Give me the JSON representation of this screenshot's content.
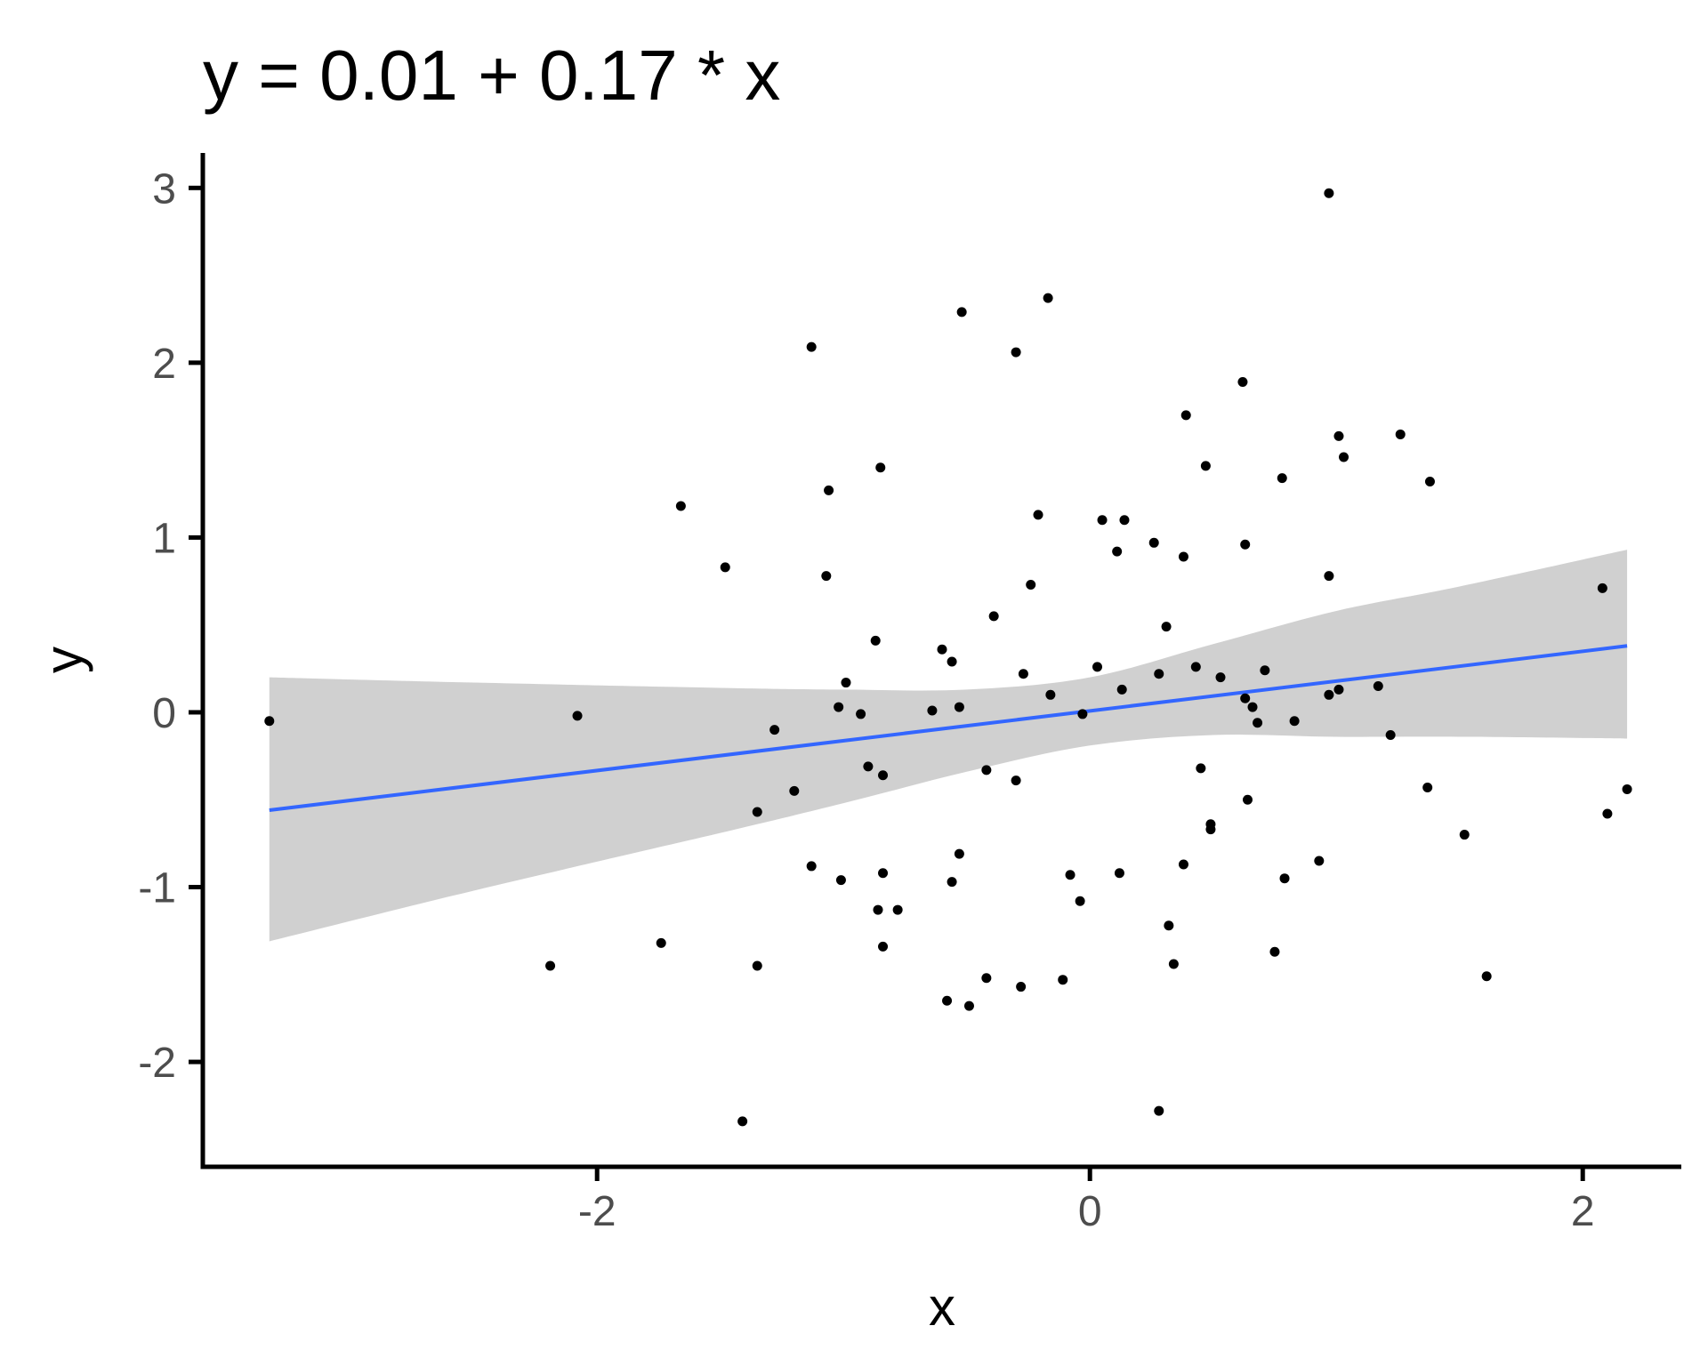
{
  "chart_data": {
    "type": "scatter",
    "title": "y = 0.01 + 0.17 * x",
    "xlabel": "x",
    "ylabel": "y",
    "xlim": [
      -3.6,
      2.4
    ],
    "ylim": [
      -2.6,
      3.2
    ],
    "x_ticks": [
      -2,
      0,
      2
    ],
    "x_tick_labels": [
      "-2",
      "0",
      "2"
    ],
    "y_ticks": [
      -2,
      -1,
      0,
      1,
      2,
      3
    ],
    "y_tick_labels": [
      "-2",
      "-1",
      "0",
      "1",
      "2",
      "3"
    ],
    "grid": false,
    "colors": {
      "points": "#000000",
      "fit_line": "#3366ff",
      "ribbon": "#bebebe"
    },
    "series": [
      {
        "type": "scatter",
        "points": [
          [
            -3.33,
            -0.05
          ],
          [
            -2.08,
            -0.02
          ],
          [
            -2.19,
            -1.45
          ],
          [
            -1.74,
            -1.32
          ],
          [
            -1.66,
            1.18
          ],
          [
            -1.48,
            0.83
          ],
          [
            -1.41,
            -2.34
          ],
          [
            -1.35,
            -1.45
          ],
          [
            -1.35,
            -0.57
          ],
          [
            -1.28,
            -0.1
          ],
          [
            -1.2,
            -0.45
          ],
          [
            -1.13,
            2.09
          ],
          [
            -1.13,
            -0.88
          ],
          [
            -1.06,
            1.27
          ],
          [
            -1.07,
            0.78
          ],
          [
            -1.02,
            0.03
          ],
          [
            -1.01,
            -0.96
          ],
          [
            -0.99,
            0.17
          ],
          [
            -0.93,
            -0.01
          ],
          [
            -0.9,
            -0.31
          ],
          [
            -0.87,
            0.41
          ],
          [
            -0.86,
            -1.13
          ],
          [
            -0.85,
            1.4
          ],
          [
            -0.84,
            -1.34
          ],
          [
            -0.84,
            -0.92
          ],
          [
            -0.84,
            -0.36
          ],
          [
            -0.78,
            -1.13
          ],
          [
            -0.64,
            0.01
          ],
          [
            -0.6,
            0.36
          ],
          [
            -0.58,
            -1.65
          ],
          [
            -0.56,
            0.29
          ],
          [
            -0.56,
            -0.97
          ],
          [
            -0.53,
            0.03
          ],
          [
            -0.53,
            -0.81
          ],
          [
            -0.52,
            2.29
          ],
          [
            -0.49,
            -1.68
          ],
          [
            -0.42,
            -0.33
          ],
          [
            -0.42,
            -1.52
          ],
          [
            -0.39,
            0.55
          ],
          [
            -0.3,
            2.06
          ],
          [
            -0.3,
            -0.39
          ],
          [
            -0.28,
            -1.57
          ],
          [
            -0.27,
            0.22
          ],
          [
            -0.24,
            0.73
          ],
          [
            -0.21,
            1.13
          ],
          [
            -0.17,
            2.37
          ],
          [
            -0.16,
            0.1
          ],
          [
            -0.11,
            -1.53
          ],
          [
            -0.08,
            -0.93
          ],
          [
            -0.04,
            -1.08
          ],
          [
            -0.03,
            -0.01
          ],
          [
            0.03,
            0.26
          ],
          [
            0.05,
            1.1
          ],
          [
            0.11,
            0.92
          ],
          [
            0.12,
            -0.92
          ],
          [
            0.13,
            0.13
          ],
          [
            0.14,
            1.1
          ],
          [
            0.26,
            0.97
          ],
          [
            0.28,
            -2.28
          ],
          [
            0.28,
            0.22
          ],
          [
            0.31,
            0.49
          ],
          [
            0.32,
            -1.22
          ],
          [
            0.34,
            -1.44
          ],
          [
            0.38,
            0.89
          ],
          [
            0.38,
            -0.87
          ],
          [
            0.39,
            1.7
          ],
          [
            0.43,
            0.26
          ],
          [
            0.45,
            -0.32
          ],
          [
            0.47,
            1.41
          ],
          [
            0.49,
            -0.64
          ],
          [
            0.49,
            -0.67
          ],
          [
            0.53,
            0.2
          ],
          [
            0.62,
            1.89
          ],
          [
            0.63,
            0.08
          ],
          [
            0.63,
            0.96
          ],
          [
            0.64,
            -0.5
          ],
          [
            0.66,
            0.03
          ],
          [
            0.68,
            -0.06
          ],
          [
            0.71,
            0.24
          ],
          [
            0.75,
            -1.37
          ],
          [
            0.78,
            1.34
          ],
          [
            0.79,
            -0.95
          ],
          [
            0.83,
            -0.05
          ],
          [
            0.93,
            -0.85
          ],
          [
            0.97,
            0.1
          ],
          [
            0.97,
            0.78
          ],
          [
            0.97,
            2.97
          ],
          [
            1.01,
            0.13
          ],
          [
            1.01,
            1.58
          ],
          [
            1.03,
            1.46
          ],
          [
            1.17,
            0.15
          ],
          [
            1.22,
            -0.13
          ],
          [
            1.26,
            1.59
          ],
          [
            1.37,
            -0.43
          ],
          [
            1.38,
            1.32
          ],
          [
            1.52,
            -0.7
          ],
          [
            1.61,
            -1.51
          ],
          [
            2.08,
            0.71
          ],
          [
            2.1,
            -0.58
          ],
          [
            2.18,
            -0.44
          ]
        ]
      },
      {
        "type": "line",
        "x": [
          -3.33,
          2.18
        ],
        "y": [
          -0.56,
          0.38
        ]
      },
      {
        "type": "area",
        "x": [
          -3.33,
          -2.5,
          -1.5,
          -1.0,
          -0.5,
          0.0,
          0.5,
          1.0,
          1.5,
          2.18
        ],
        "ymin": [
          -1.31,
          -1.02,
          -0.69,
          -0.52,
          -0.34,
          -0.19,
          -0.13,
          -0.14,
          -0.14,
          -0.15
        ],
        "ymax": [
          0.2,
          0.17,
          0.14,
          0.13,
          0.13,
          0.2,
          0.39,
          0.58,
          0.72,
          0.93
        ]
      }
    ]
  }
}
